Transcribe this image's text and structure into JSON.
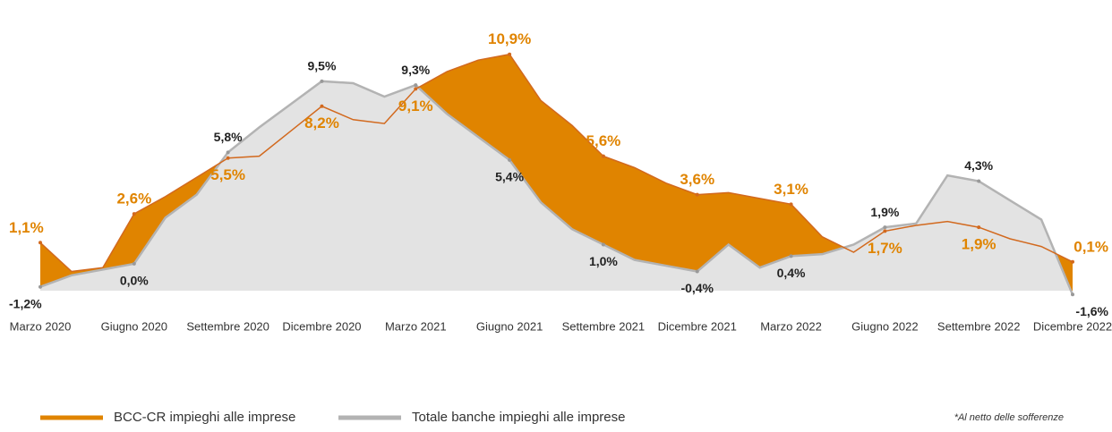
{
  "chart_data": {
    "type": "line",
    "categories": [
      "Marzo 2020",
      null,
      null,
      "Giugno 2020",
      null,
      null,
      "Settembre 2020",
      null,
      null,
      "Dicembre 2020",
      null,
      null,
      "Marzo 2021",
      null,
      null,
      "Giugno 2021",
      null,
      null,
      "Settembre 2021",
      null,
      null,
      "Dicembre 2021",
      null,
      null,
      "Marzo 2022",
      null,
      null,
      "Giugno 2022",
      null,
      null,
      "Settembre 2022",
      null,
      null,
      "Dicembre 2022"
    ],
    "series": [
      {
        "name": "BCC-CR impieghi alle imprese",
        "color": "#e08400",
        "line_color": "#d2691e",
        "values": [
          1.1,
          -0.4,
          -0.2,
          2.6,
          3.5,
          4.5,
          5.5,
          5.6,
          6.9,
          8.2,
          7.5,
          7.3,
          9.1,
          10.0,
          10.6,
          10.9,
          8.5,
          7.2,
          5.6,
          5.0,
          4.2,
          3.6,
          3.7,
          3.4,
          3.1,
          1.4,
          0.6,
          1.7,
          2.0,
          2.2,
          1.9,
          1.3,
          0.9,
          0.1
        ],
        "value_labels": [
          "1,1%",
          null,
          null,
          "2,6%",
          null,
          null,
          "5,5%",
          null,
          null,
          "8,2%",
          null,
          null,
          "9,1%",
          null,
          null,
          "10,9%",
          null,
          null,
          "5,6%",
          null,
          null,
          "3,6%",
          null,
          null,
          "3,1%",
          null,
          null,
          "1,7%",
          null,
          null,
          "1,9%",
          null,
          null,
          "0,1%"
        ]
      },
      {
        "name": "Totale banche impieghi alle imprese",
        "color": "#b3b3b3",
        "fill": "#e3e3e3",
        "values": [
          -1.2,
          -0.6,
          -0.3,
          0.0,
          2.4,
          3.6,
          5.8,
          7.1,
          8.3,
          9.5,
          9.4,
          8.7,
          9.3,
          7.8,
          6.6,
          5.4,
          3.2,
          1.8,
          1.0,
          0.2,
          -0.1,
          -0.4,
          1.0,
          -0.2,
          0.4,
          0.5,
          1.0,
          1.9,
          2.1,
          4.6,
          4.3,
          3.3,
          2.3,
          -1.6
        ],
        "value_labels": [
          "-1,2%",
          null,
          null,
          "0,0%",
          null,
          null,
          "5,8%",
          null,
          null,
          "9,5%",
          null,
          null,
          "9,3%",
          null,
          null,
          "5,4%",
          null,
          null,
          "1,0%",
          null,
          null,
          "-0,4%",
          null,
          null,
          "0,4%",
          null,
          null,
          "1,9%",
          null,
          null,
          "4,3%",
          null,
          null,
          "-1,6%"
        ]
      }
    ],
    "ylim": [
      -1.4,
      11.4
    ],
    "note": "*Al netto delle sofferenze"
  }
}
